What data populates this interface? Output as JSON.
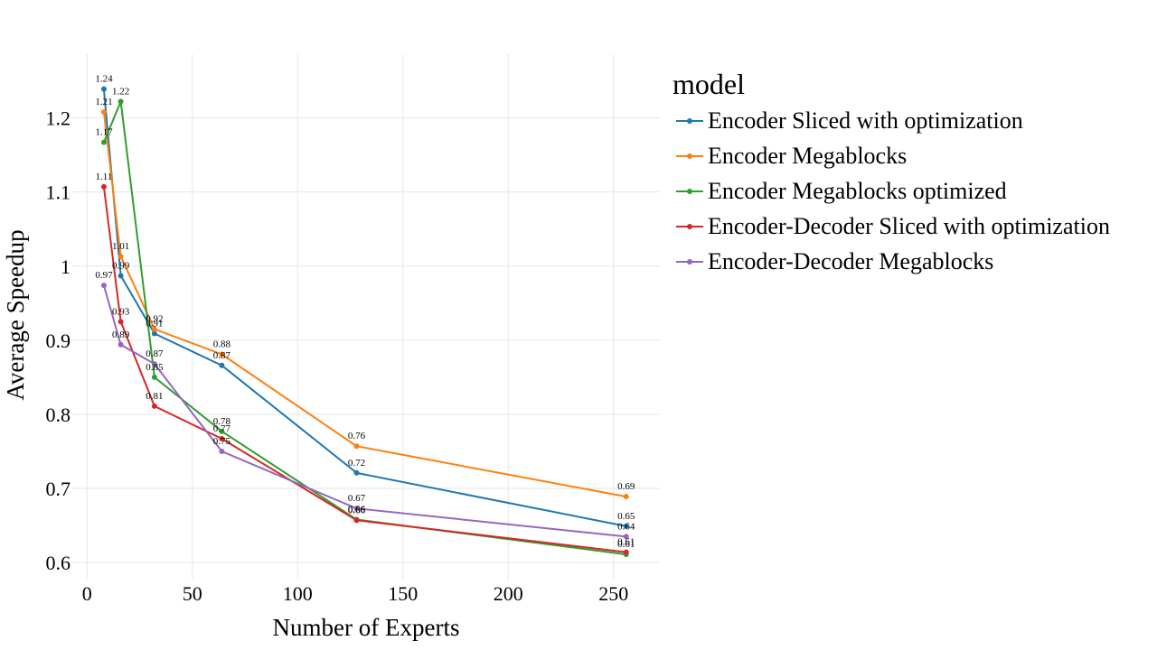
{
  "chart_data": {
    "type": "line",
    "xlabel": "Number of Experts",
    "ylabel": "Average Speedup",
    "xlim": [
      -7,
      272
    ],
    "ylim": [
      0.577,
      1.286
    ],
    "xticks": [
      0,
      50,
      100,
      150,
      200,
      250
    ],
    "yticks": [
      0.6,
      0.7,
      0.8,
      0.9,
      1,
      1.1,
      1.2
    ],
    "xtick_labels": [
      "0",
      "50",
      "100",
      "150",
      "200",
      "250"
    ],
    "ytick_labels": [
      "0.6",
      "0.7",
      "0.8",
      "0.9",
      "1",
      "1.1",
      "1.2"
    ],
    "grid": true,
    "legend_title": "model",
    "legend_position": "right",
    "x": [
      8,
      16,
      32,
      64,
      128,
      256
    ],
    "series": [
      {
        "name": "Encoder Sliced with optimization",
        "color": "#1f77b4",
        "values": [
          1.239,
          0.987,
          0.909,
          0.866,
          0.721,
          0.649
        ],
        "labels": [
          "1.24",
          "0.99",
          "0.91",
          "0.87",
          "0.72",
          "0.65"
        ]
      },
      {
        "name": "Encoder Megablocks",
        "color": "#ff7f0e",
        "values": [
          1.208,
          1.013,
          0.915,
          0.881,
          0.757,
          0.689
        ],
        "labels": [
          "1.21",
          "1.01",
          "0.92",
          "0.88",
          "0.76",
          "0.69"
        ]
      },
      {
        "name": "Encoder Megablocks optimized",
        "color": "#2ca02c",
        "values": [
          1.167,
          1.222,
          0.85,
          0.777,
          0.658,
          0.611
        ],
        "labels": [
          "1.17",
          "1.22",
          "0.85",
          "0.78",
          "0.66",
          "0.61"
        ]
      },
      {
        "name": "Encoder-Decoder Sliced with optimization",
        "color": "#d62728",
        "values": [
          1.107,
          0.925,
          0.811,
          0.767,
          0.657,
          0.614
        ],
        "labels": [
          "1.11",
          "0.93",
          "0.81",
          "0.77",
          "0.66",
          "0.61"
        ]
      },
      {
        "name": "Encoder-Decoder Megablocks",
        "color": "#9467bd",
        "values": [
          0.974,
          0.894,
          0.868,
          0.75,
          0.673,
          0.635
        ],
        "labels": [
          "0.97",
          "0.89",
          "0.87",
          "0.75",
          "0.67",
          "0.64"
        ]
      }
    ]
  }
}
